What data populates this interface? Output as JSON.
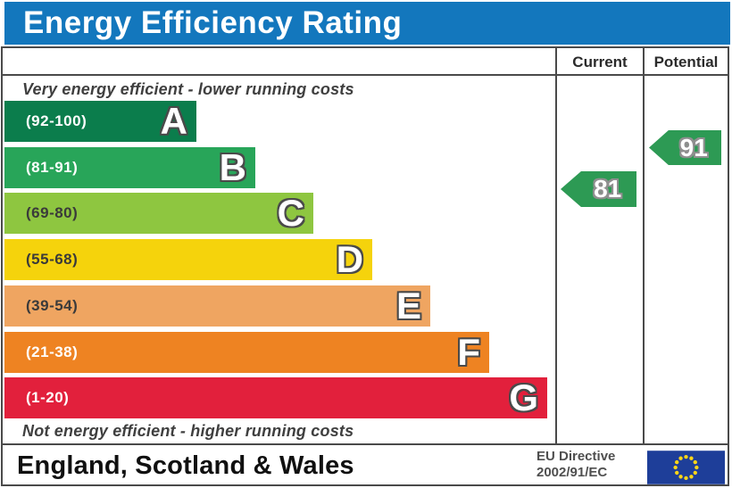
{
  "title": "Energy Efficiency Rating",
  "header": {
    "current_label": "Current",
    "potential_label": "Potential"
  },
  "notes": {
    "top": "Very energy efficient - lower running costs",
    "bottom": "Not energy efficient - higher running costs"
  },
  "ratings": {
    "current": "81",
    "potential": "91"
  },
  "footer": {
    "region": "England, Scotland & Wales",
    "directive_line1": "EU Directive",
    "directive_line2": "2002/91/EC"
  },
  "colors": {
    "title_bar_bg": "#1377bd",
    "title_text": "#ffffff",
    "table_border": "#4a4a4a",
    "arrow_green": "#2d9a54",
    "eu_flag_blue": "#1e3e99",
    "eu_flag_star": "#ffd617"
  },
  "chart_data": {
    "type": "bar",
    "title": "Energy Efficiency Rating",
    "note_top": "Very energy efficient - lower running costs",
    "note_bottom": "Not energy efficient - higher running costs",
    "columns": [
      "Current",
      "Potential"
    ],
    "bands": [
      {
        "letter": "A",
        "range_label": "(92-100)",
        "min": 92,
        "max": 100,
        "color": "#0b7d4c",
        "range_text_color": "#ffffff"
      },
      {
        "letter": "B",
        "range_label": "(81-91)",
        "min": 81,
        "max": 91,
        "color": "#28a559",
        "range_text_color": "#ffffff"
      },
      {
        "letter": "C",
        "range_label": "(69-80)",
        "min": 69,
        "max": 80,
        "color": "#8ec640",
        "range_text_color": "#3a3a3a"
      },
      {
        "letter": "D",
        "range_label": "(55-68)",
        "min": 55,
        "max": 68,
        "color": "#f5d30c",
        "range_text_color": "#3a3a3a"
      },
      {
        "letter": "E",
        "range_label": "(39-54)",
        "min": 39,
        "max": 54,
        "color": "#efa561",
        "range_text_color": "#3a3a3a"
      },
      {
        "letter": "F",
        "range_label": "(21-38)",
        "min": 21,
        "max": 38,
        "color": "#ee8322",
        "range_text_color": "#ffffff"
      },
      {
        "letter": "G",
        "range_label": "(1-20)",
        "min": 1,
        "max": 20,
        "color": "#e2203c",
        "range_text_color": "#ffffff"
      }
    ],
    "current": {
      "value": 81,
      "band": "B"
    },
    "potential": {
      "value": 91,
      "band": "B"
    },
    "region": "England, Scotland & Wales",
    "directive": "EU Directive 2002/91/EC"
  }
}
